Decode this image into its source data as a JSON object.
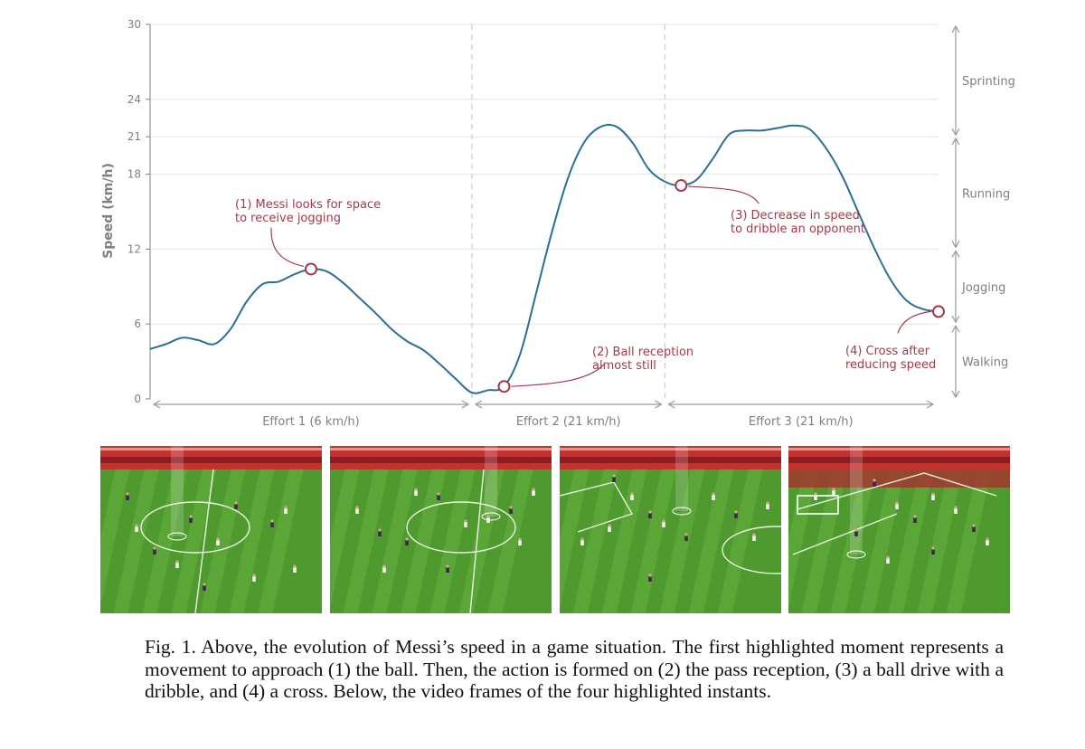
{
  "chart_data": {
    "type": "line",
    "title": "",
    "xlabel": "",
    "ylabel": "Speed (km/h)",
    "ylim": [
      0,
      30
    ],
    "yticks": [
      0,
      6,
      12,
      18,
      21,
      24,
      30
    ],
    "grid": "horizontal",
    "series": [
      {
        "values": [
          4.0,
          4.4,
          4.9,
          4.7,
          4.4,
          5.6,
          7.8,
          9.2,
          9.4,
          10.0,
          10.4,
          10.2,
          9.3,
          8.1,
          6.9,
          5.6,
          4.6,
          3.9,
          2.8,
          1.6,
          0.5,
          0.7,
          1.0,
          3.6,
          8.5,
          13.5,
          17.8,
          20.6,
          21.8,
          21.8,
          20.5,
          18.4,
          17.4,
          17.1,
          17.6,
          19.3,
          21.2,
          21.5,
          21.5,
          21.7,
          21.9,
          21.6,
          20.1,
          17.9,
          15.0,
          12.1,
          9.6,
          7.9,
          7.2,
          7.0
        ]
      }
    ],
    "highlights": [
      {
        "index": 10,
        "value": 10.4,
        "label": "(1) Messi looks for space to receive jogging"
      },
      {
        "index": 22,
        "value": 1.0,
        "label": "(2) Ball reception almost still"
      },
      {
        "index": 33,
        "value": 17.1,
        "label": "(3) Decrease in speed to dribble an opponent"
      },
      {
        "index": 49,
        "value": 7.0,
        "label": "(4) Cross after reducing speed"
      }
    ],
    "efforts": [
      {
        "label": "Effort 1 (6 km/h)",
        "start": 0,
        "end": 20
      },
      {
        "label": "Effort 2 (21 km/h)",
        "start": 20,
        "end": 32
      },
      {
        "label": "Effort 3 (21 km/h)",
        "start": 32,
        "end": 49
      }
    ],
    "bands": [
      {
        "label": "Sprinting",
        "from": 21,
        "to": 30
      },
      {
        "label": "Running",
        "from": 12,
        "to": 21
      },
      {
        "label": "Jogging",
        "from": 6,
        "to": 12
      },
      {
        "label": "Walking",
        "from": 0,
        "to": 6
      }
    ],
    "colors": {
      "line": "#2a6f97",
      "annotation": "#a23a4a",
      "grid": "#e4e4e4",
      "axis": "#7f7f7f"
    }
  },
  "annotations": {
    "a1": [
      "(1) Messi looks for space",
      "to receive jogging"
    ],
    "a2": [
      "(2) Ball reception",
      "almost still"
    ],
    "a3": [
      "(3) Decrease in speed",
      "to dribble an opponent"
    ],
    "a4": [
      "(4) Cross after",
      "reducing speed"
    ]
  },
  "frames": [
    {
      "name": "frame-1",
      "icon": "football-pitch-video-frame"
    },
    {
      "name": "frame-2",
      "icon": "football-pitch-video-frame"
    },
    {
      "name": "frame-3",
      "icon": "football-pitch-video-frame"
    },
    {
      "name": "frame-4",
      "icon": "football-pitch-video-frame"
    }
  ],
  "caption": "Fig. 1. Above, the evolution of Messi’s speed in a game situation. The first highlighted moment represents a movement to approach (1) the ball. Then, the action is formed on (2) the pass reception, (3) a ball drive with a dribble, and (4) a cross. Below, the video frames of the four highlighted instants."
}
